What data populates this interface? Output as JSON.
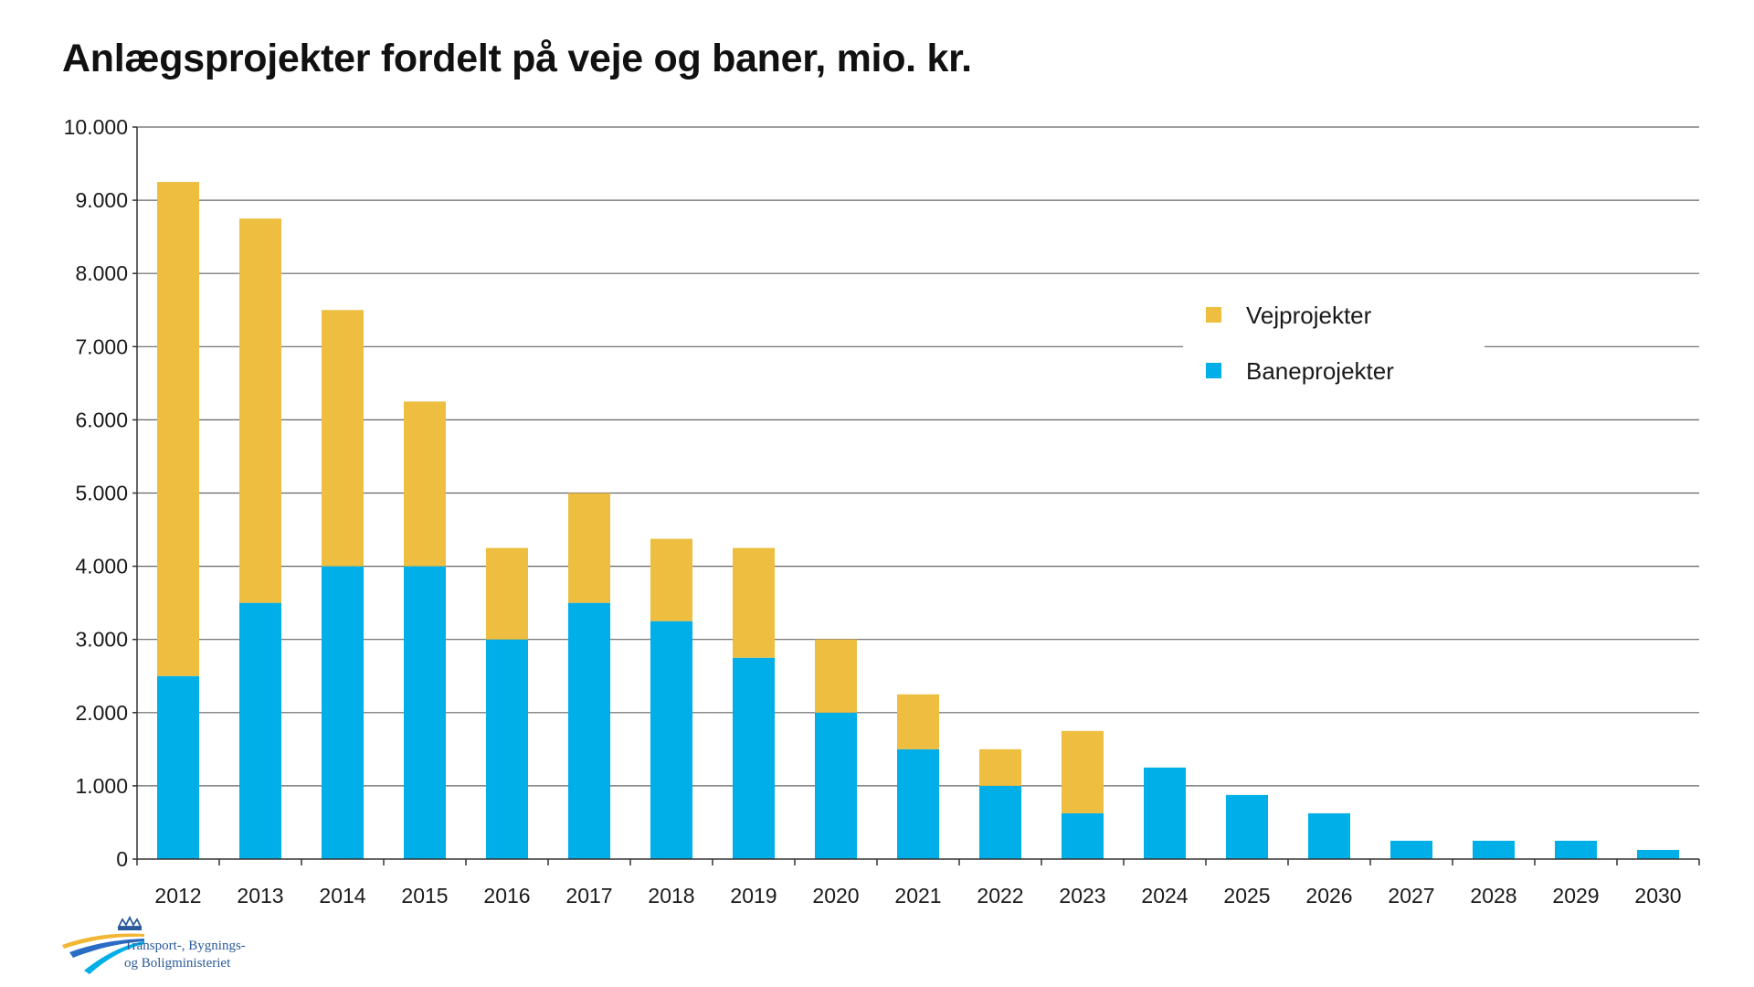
{
  "title": "Anlægsprojekter fordelt på veje og baner, mio. kr.",
  "logo": {
    "line1": "Transport-, Bygnings-",
    "line2": "og Boligministeriet"
  },
  "colors": {
    "vej": "#EEBE40",
    "bane": "#00AEE8",
    "grid": "#666666",
    "axis": "#333333"
  },
  "chart_data": {
    "type": "bar",
    "stacked": true,
    "title": "Anlægsprojekter fordelt på veje og baner, mio. kr.",
    "categories": [
      "2012",
      "2013",
      "2014",
      "2015",
      "2016",
      "2017",
      "2018",
      "2019",
      "2020",
      "2021",
      "2022",
      "2023",
      "2024",
      "2025",
      "2026",
      "2027",
      "2028",
      "2029",
      "2030"
    ],
    "series": [
      {
        "name": "Baneprojekter",
        "color": "#00AEE8",
        "values": [
          2500,
          3500,
          4000,
          4000,
          3000,
          3500,
          3250,
          2750,
          2000,
          1500,
          1000,
          625,
          1250,
          875,
          625,
          250,
          250,
          250,
          125
        ]
      },
      {
        "name": "Vejprojekter",
        "color": "#EEBE40",
        "values": [
          6750,
          5250,
          3500,
          2250,
          1250,
          1500,
          1125,
          1500,
          1000,
          750,
          500,
          1125,
          0,
          0,
          0,
          0,
          0,
          0,
          0
        ]
      }
    ],
    "ylim": [
      0,
      10000
    ],
    "yticks": [
      0,
      1000,
      2000,
      3000,
      4000,
      5000,
      6000,
      7000,
      8000,
      9000,
      10000
    ],
    "ytick_labels": [
      "0",
      "1.000",
      "2.000",
      "3.000",
      "4.000",
      "5.000",
      "6.000",
      "7.000",
      "8.000",
      "9.000",
      "10.000"
    ],
    "legend": [
      {
        "label": "Vejprojekter",
        "color": "#EEBE40"
      },
      {
        "label": "Baneprojekter",
        "color": "#00AEE8"
      }
    ],
    "legend_position": "upper-right",
    "grid": true
  }
}
